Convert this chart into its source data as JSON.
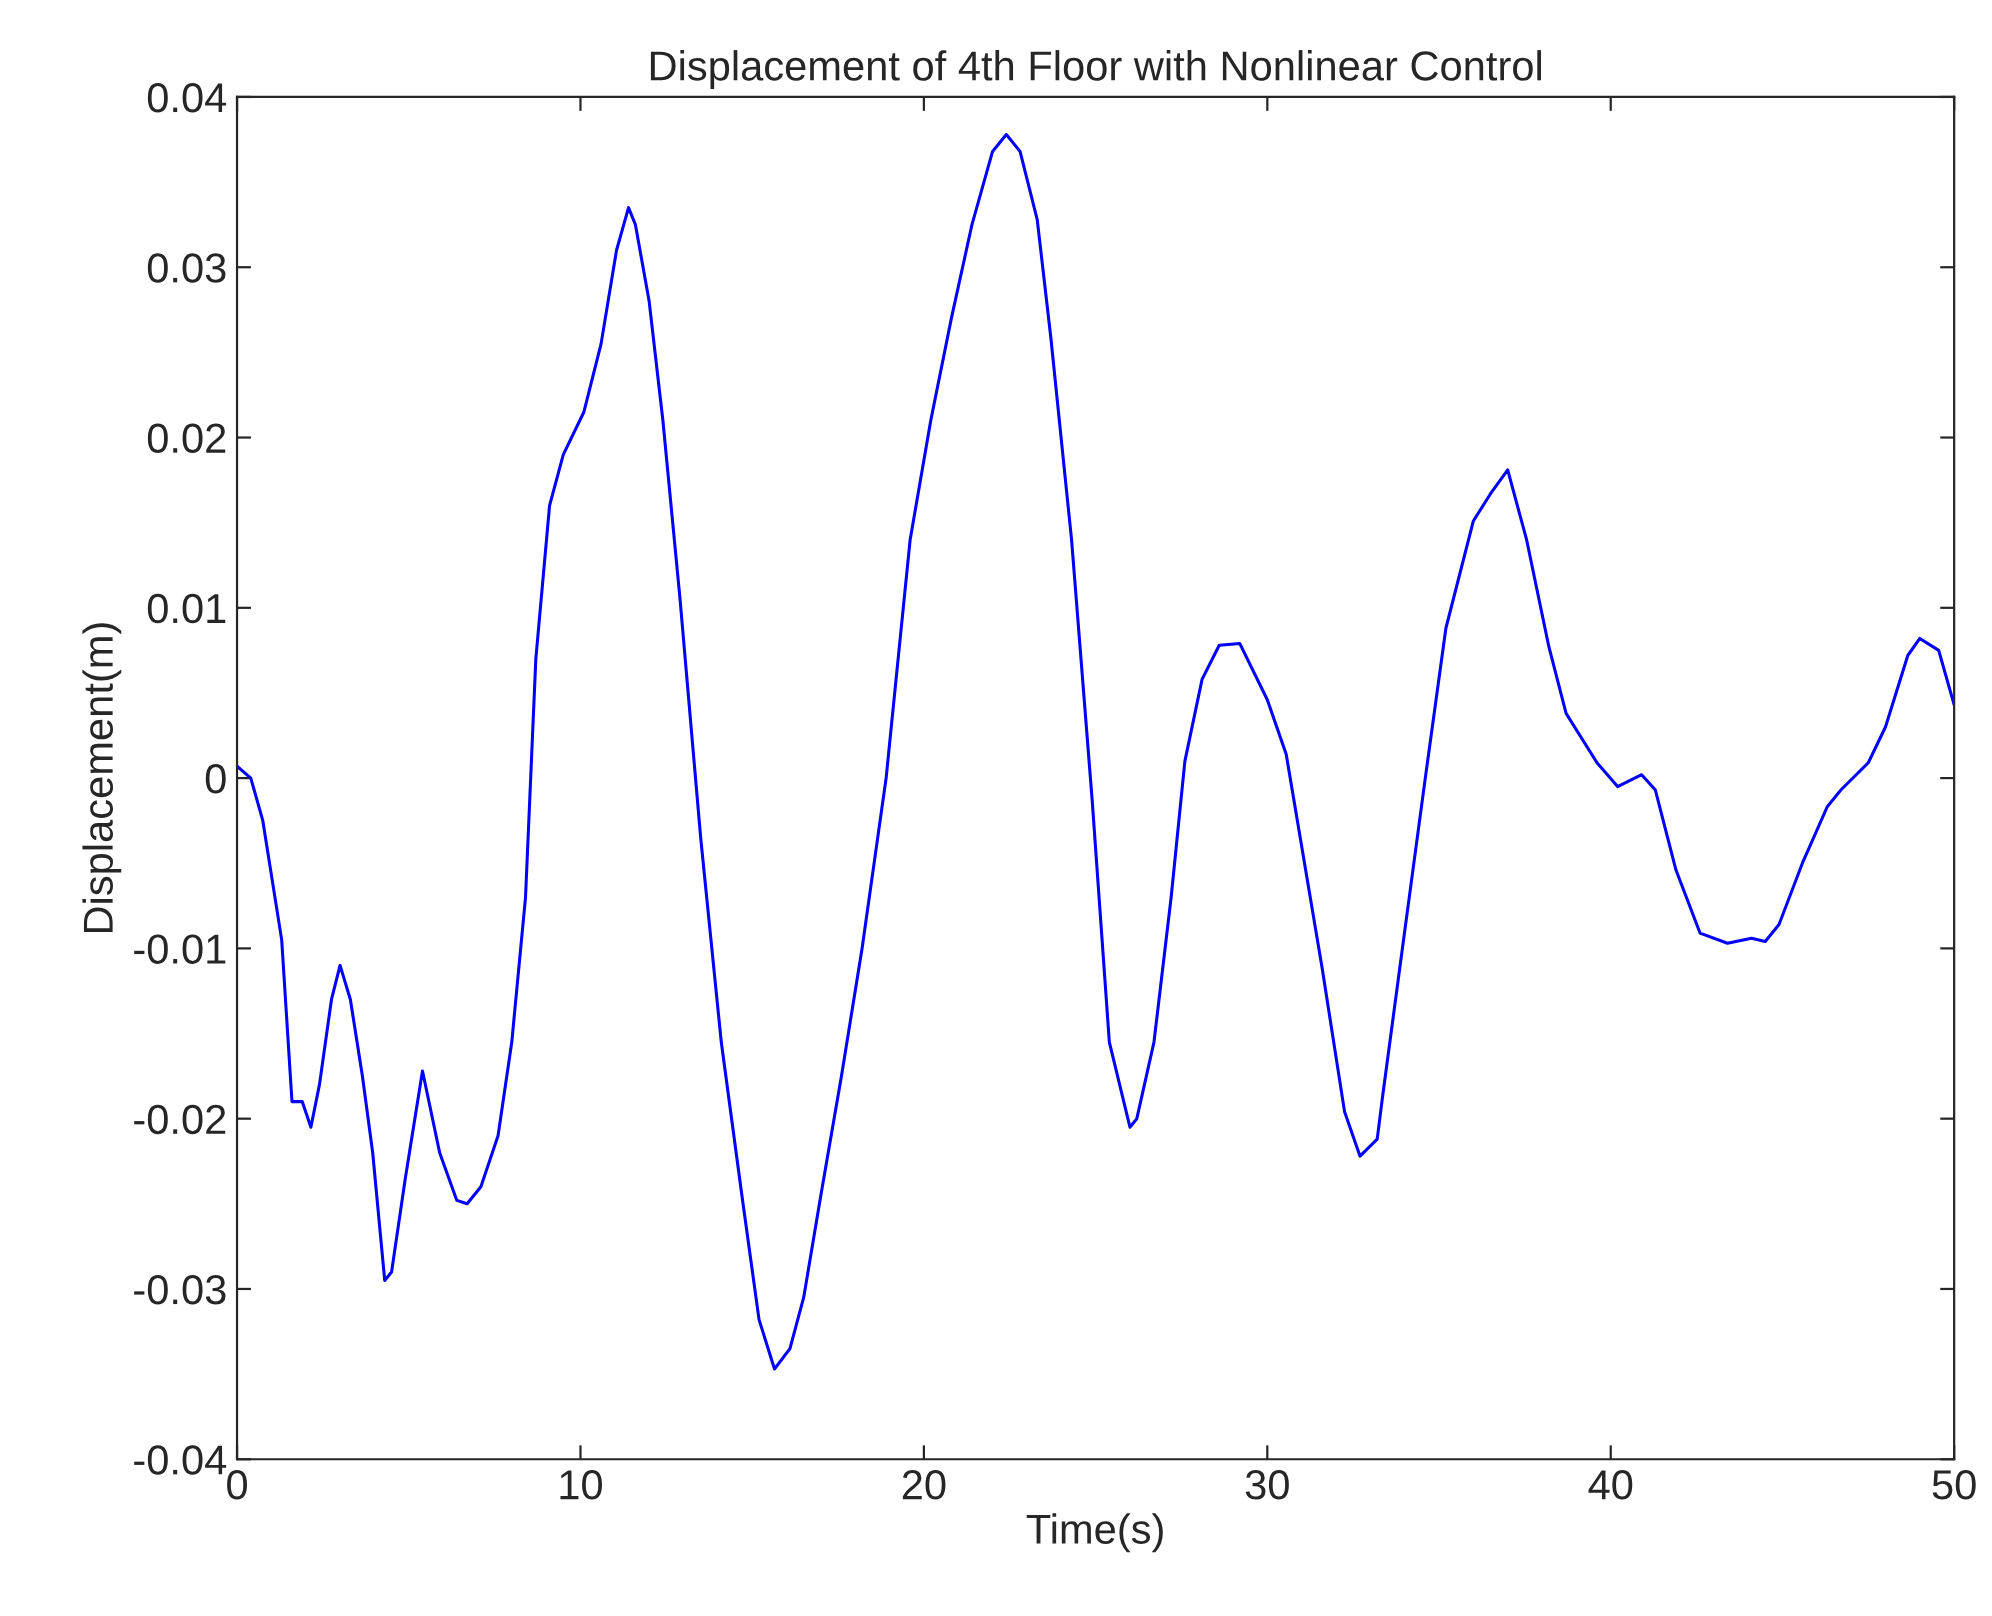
{
  "chart_data": {
    "type": "line",
    "title": "Displacement of 4th Floor with Nonlinear Control",
    "xlabel": "Time(s)",
    "ylabel": "Displacement(m)",
    "xlim": [
      0,
      50
    ],
    "xticks": [
      0,
      10,
      20,
      30,
      40,
      50
    ],
    "ylim": [
      -0.04,
      0.04
    ],
    "yticks": [
      -0.04,
      -0.03,
      -0.02,
      -0.01,
      0,
      0.01,
      0.02,
      0.03,
      0.04
    ],
    "grid": false,
    "legend": false,
    "series": [
      {
        "color": "#0000ff",
        "x": [
          0,
          0.4,
          0.75,
          1.3,
          1.6,
          1.9,
          2.15,
          2.4,
          2.75,
          3.0,
          3.3,
          3.65,
          3.95,
          4.3,
          4.5,
          4.9,
          5.4,
          5.9,
          6.4,
          6.7,
          7.1,
          7.6,
          8.0,
          8.4,
          8.7,
          9.1,
          9.5,
          10.1,
          10.6,
          11.05,
          11.4,
          11.6,
          12.0,
          12.4,
          12.9,
          13.5,
          14.1,
          14.7,
          15.2,
          15.65,
          16.1,
          16.5,
          17.0,
          17.6,
          18.2,
          18.9,
          19.6,
          20.2,
          20.8,
          21.4,
          22.0,
          22.4,
          22.8,
          23.3,
          23.7,
          24.3,
          24.9,
          25.4,
          26.0,
          26.2,
          26.7,
          27.2,
          27.6,
          28.1,
          28.6,
          29.2,
          30.0,
          30.55,
          31.6,
          32.25,
          32.7,
          33.2,
          33.35,
          34.0,
          34.6,
          35.2,
          36.0,
          36.5,
          37.0,
          37.55,
          38.2,
          38.7,
          39.6,
          40.2,
          40.9,
          41.3,
          41.9,
          42.6,
          43.4,
          44.1,
          44.5,
          44.9,
          45.6,
          46.3,
          46.7,
          47.5,
          48.0,
          48.65,
          49.0,
          49.55,
          50
        ],
        "values": [
          0.0007,
          0.0,
          -0.0025,
          -0.0095,
          -0.019,
          -0.019,
          -0.0205,
          -0.018,
          -0.013,
          -0.011,
          -0.013,
          -0.0175,
          -0.022,
          -0.0295,
          -0.029,
          -0.0235,
          -0.0172,
          -0.022,
          -0.0248,
          -0.025,
          -0.024,
          -0.021,
          -0.0155,
          -0.007,
          0.007,
          0.016,
          0.019,
          0.0215,
          0.0255,
          0.031,
          0.0335,
          0.0325,
          0.028,
          0.021,
          0.0105,
          -0.0035,
          -0.0155,
          -0.0245,
          -0.0318,
          -0.0347,
          -0.0335,
          -0.0305,
          -0.0245,
          -0.0175,
          -0.01,
          0.0,
          0.014,
          0.021,
          0.027,
          0.0325,
          0.0368,
          0.0378,
          0.0368,
          0.0328,
          0.0258,
          0.014,
          -0.0013,
          -0.0155,
          -0.0205,
          -0.02,
          -0.0155,
          -0.007,
          0.001,
          0.0058,
          0.0078,
          0.0079,
          0.0046,
          0.0014,
          -0.0112,
          -0.0196,
          -0.0222,
          -0.0212,
          -0.0188,
          -0.009,
          0.0,
          0.0088,
          0.0151,
          0.0167,
          0.0181,
          0.014,
          0.0077,
          0.0038,
          0.0009,
          -0.0005,
          0.0002,
          -0.0007,
          -0.0054,
          -0.0091,
          -0.0097,
          -0.0094,
          -0.0096,
          -0.0086,
          -0.0049,
          -0.0017,
          -0.0007,
          0.0009,
          0.003,
          0.0072,
          0.0082,
          0.0075,
          0.0043
        ]
      }
    ]
  }
}
